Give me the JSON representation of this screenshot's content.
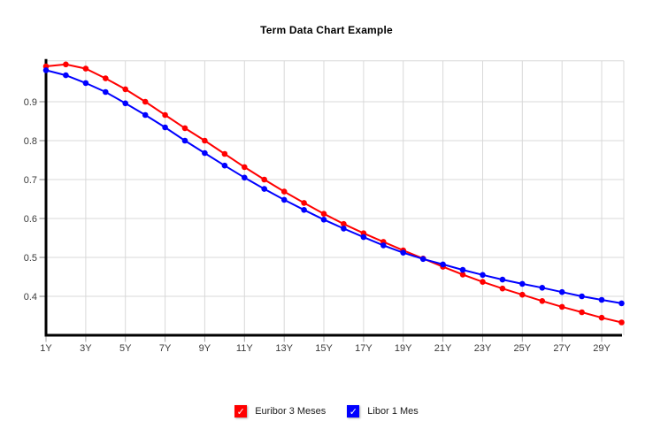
{
  "window": {
    "background": "#ffffff"
  },
  "chart_data": {
    "type": "line",
    "title": "Term Data Chart Example",
    "xlabel": "",
    "ylabel": "",
    "grid": true,
    "legend_position": "bottom",
    "marker": "circle",
    "xlim": [
      1,
      30.2
    ],
    "ylim": [
      0.3,
      1.005
    ],
    "x": [
      1,
      2,
      3,
      4,
      5,
      6,
      7,
      8,
      9,
      10,
      11,
      12,
      13,
      14,
      15,
      16,
      17,
      18,
      19,
      20,
      21,
      22,
      23,
      24,
      25,
      26,
      27,
      28,
      29,
      30
    ],
    "x_ticks": [
      {
        "pos": 1,
        "label": "1Y"
      },
      {
        "pos": 3,
        "label": "3Y"
      },
      {
        "pos": 5,
        "label": "5Y"
      },
      {
        "pos": 7,
        "label": "7Y"
      },
      {
        "pos": 9,
        "label": "9Y"
      },
      {
        "pos": 11,
        "label": "11Y"
      },
      {
        "pos": 13,
        "label": "13Y"
      },
      {
        "pos": 15,
        "label": "15Y"
      },
      {
        "pos": 17,
        "label": "17Y"
      },
      {
        "pos": 19,
        "label": "19Y"
      },
      {
        "pos": 21,
        "label": "21Y"
      },
      {
        "pos": 23,
        "label": "23Y"
      },
      {
        "pos": 25,
        "label": "25Y"
      },
      {
        "pos": 27,
        "label": "27Y"
      },
      {
        "pos": 29,
        "label": "29Y"
      }
    ],
    "y_ticks": [
      {
        "value": 0.4,
        "label": "0.4"
      },
      {
        "value": 0.5,
        "label": "0.5"
      },
      {
        "value": 0.6,
        "label": "0.6"
      },
      {
        "value": 0.7,
        "label": "0.7"
      },
      {
        "value": 0.8,
        "label": "0.8"
      },
      {
        "value": 0.9,
        "label": "0.9"
      }
    ],
    "series": [
      {
        "name": "Euribor 3 Meses",
        "color": "#ff0000",
        "values": [
          0.991,
          0.996,
          0.985,
          0.96,
          0.932,
          0.9,
          0.866,
          0.832,
          0.8,
          0.766,
          0.732,
          0.7,
          0.669,
          0.64,
          0.612,
          0.586,
          0.562,
          0.54,
          0.518,
          0.497,
          0.476,
          0.456,
          0.437,
          0.42,
          0.404,
          0.388,
          0.373,
          0.359,
          0.345,
          0.333
        ]
      },
      {
        "name": "Libor 1 Mes",
        "color": "#0000ff",
        "values": [
          0.981,
          0.968,
          0.948,
          0.925,
          0.896,
          0.866,
          0.834,
          0.8,
          0.768,
          0.736,
          0.705,
          0.676,
          0.648,
          0.622,
          0.597,
          0.574,
          0.552,
          0.531,
          0.512,
          0.496,
          0.482,
          0.468,
          0.455,
          0.443,
          0.432,
          0.422,
          0.411,
          0.4,
          0.391,
          0.382
        ]
      }
    ]
  },
  "legend": {
    "check_glyph": "✓"
  },
  "style": {
    "grid_color": "#d8d8d8",
    "axis_color": "#000000",
    "x_tick_color": "#a6a6a6",
    "y_tick_color": "#808080",
    "label_color": "#3a3a3a"
  }
}
